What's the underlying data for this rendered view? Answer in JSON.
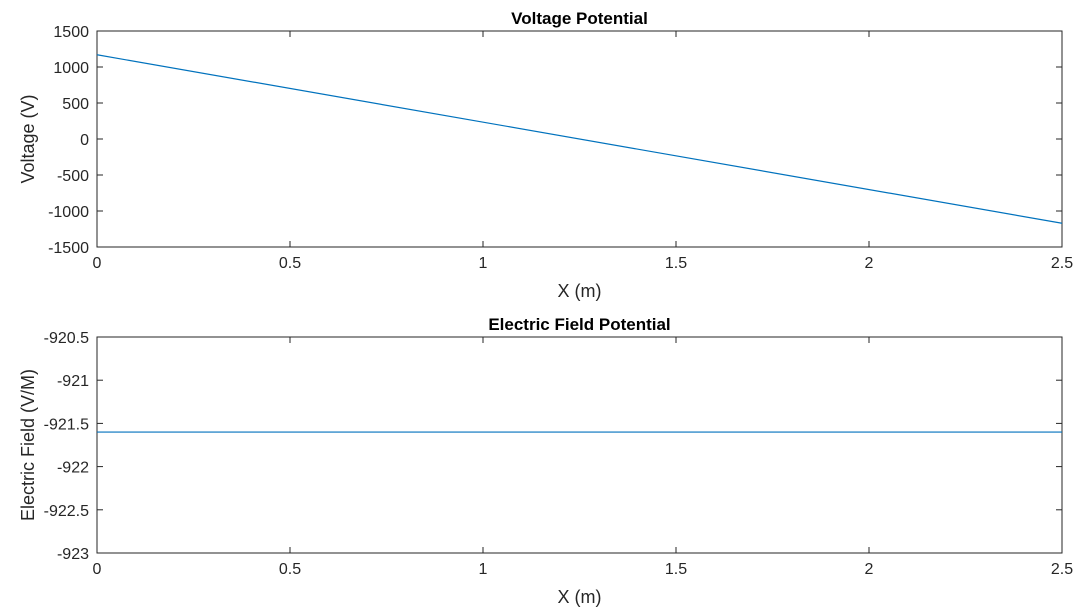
{
  "colors": {
    "series": "#0072bd",
    "grid": "#dcdcdc",
    "axes": "#262626"
  },
  "chart_data": [
    {
      "type": "line",
      "title": "Voltage Potential",
      "xlabel": "X (m)",
      "ylabel": "Voltage (V)",
      "xlim": [
        0,
        2.5
      ],
      "ylim": [
        -1500,
        1500
      ],
      "xticks": [
        0,
        0.5,
        1,
        1.5,
        2,
        2.5
      ],
      "xtick_labels": [
        "0",
        "0.5",
        "1",
        "1.5",
        "2",
        "2.5"
      ],
      "yticks": [
        1500,
        1000,
        500,
        0,
        -500,
        -1000,
        -1500
      ],
      "ytick_labels": [
        "1500",
        "1000",
        "500",
        "0",
        "-500",
        "-1000",
        "-1500"
      ],
      "grid": true,
      "series": [
        {
          "x": [
            0,
            2.5
          ],
          "y": [
            1170,
            -1170
          ]
        }
      ]
    },
    {
      "type": "line",
      "title": "Electric Field Potential",
      "xlabel": "X (m)",
      "ylabel": "Electric Field (V/M)",
      "xlim": [
        0,
        2.5
      ],
      "ylim": [
        -923,
        -920.5
      ],
      "xticks": [
        0,
        0.5,
        1,
        1.5,
        2,
        2.5
      ],
      "xtick_labels": [
        "0",
        "0.5",
        "1",
        "1.5",
        "2",
        "2.5"
      ],
      "yticks": [
        -920.5,
        -921,
        -921.5,
        -922,
        -922.5,
        -923
      ],
      "ytick_labels": [
        "-920.5",
        "-921",
        "-921.5",
        "-922",
        "-922.5",
        "-923"
      ],
      "grid": true,
      "series": [
        {
          "x": [
            0,
            2.5
          ],
          "y": [
            -921.6,
            -921.6
          ]
        }
      ]
    }
  ]
}
